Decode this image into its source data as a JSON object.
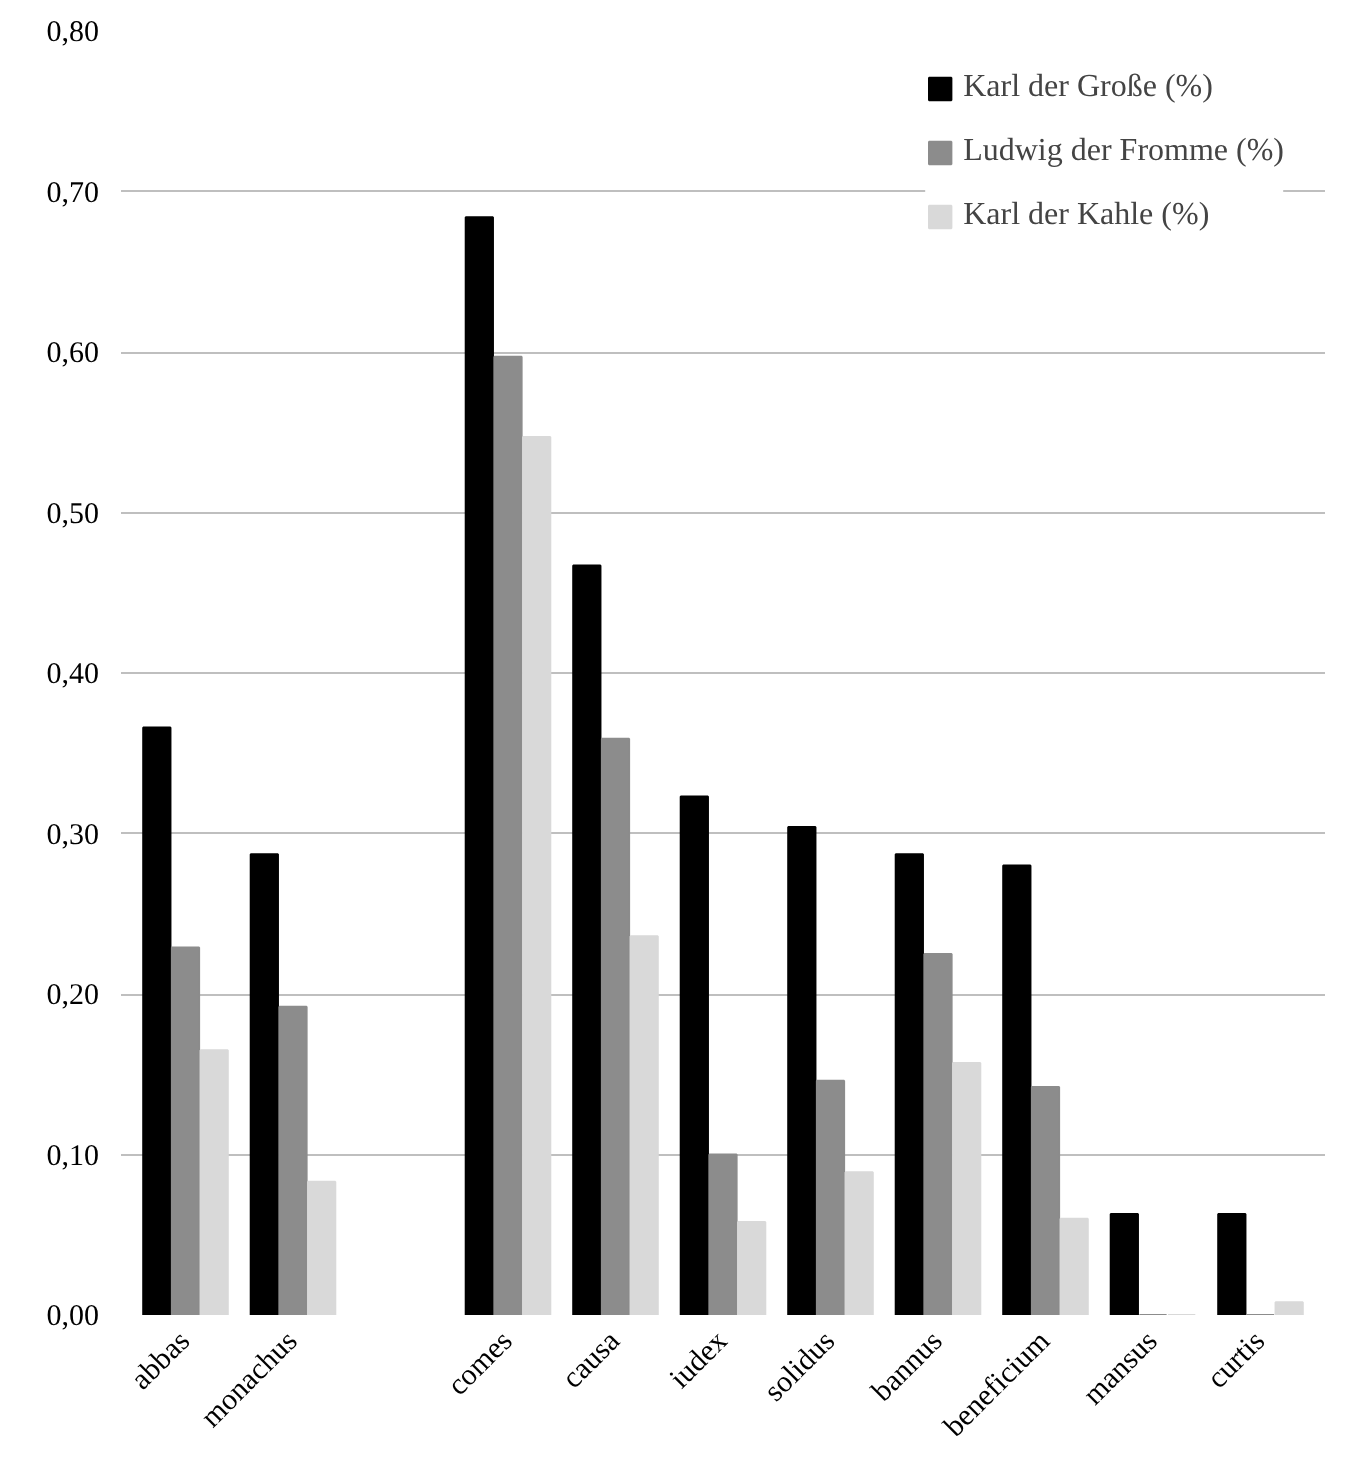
{
  "chart_data": {
    "type": "bar",
    "categories": [
      "abbas",
      "monachus",
      null,
      "comes",
      "causa",
      "iudex",
      "solidus",
      "bannus",
      "beneficium",
      "mansus",
      "curtis"
    ],
    "series": [
      {
        "name": "Karl der Große (%)",
        "color": "#000000",
        "values": [
          0.366,
          0.287,
          null,
          0.684,
          0.467,
          0.323,
          0.304,
          0.287,
          0.28,
          0.063,
          0.063
        ]
      },
      {
        "name": "Ludwig der Fromme (%)",
        "color": "#8c8c8c",
        "values": [
          0.229,
          0.192,
          null,
          0.597,
          0.359,
          0.1,
          0.146,
          0.225,
          0.142,
          0,
          0
        ]
      },
      {
        "name": "Karl der Kahle (%)",
        "color": "#d9d9d9",
        "values": [
          0.165,
          0.083,
          null,
          0.547,
          0.236,
          0.058,
          0.089,
          0.157,
          0.06,
          0,
          0.008
        ]
      }
    ],
    "ylim": [
      0,
      0.8
    ],
    "yticks": [
      {
        "value": 0,
        "label": "0,00"
      },
      {
        "value": 0.1,
        "label": "0,10"
      },
      {
        "value": 0.2,
        "label": "0,20"
      },
      {
        "value": 0.3,
        "label": "0,30"
      },
      {
        "value": 0.4,
        "label": "0,40"
      },
      {
        "value": 0.5,
        "label": "0,50"
      },
      {
        "value": 0.6,
        "label": "0,60"
      },
      {
        "value": 0.7,
        "label": "0,70"
      },
      {
        "value": 0.8,
        "label": "0,80"
      }
    ],
    "grid": "y",
    "legend": "top right"
  }
}
